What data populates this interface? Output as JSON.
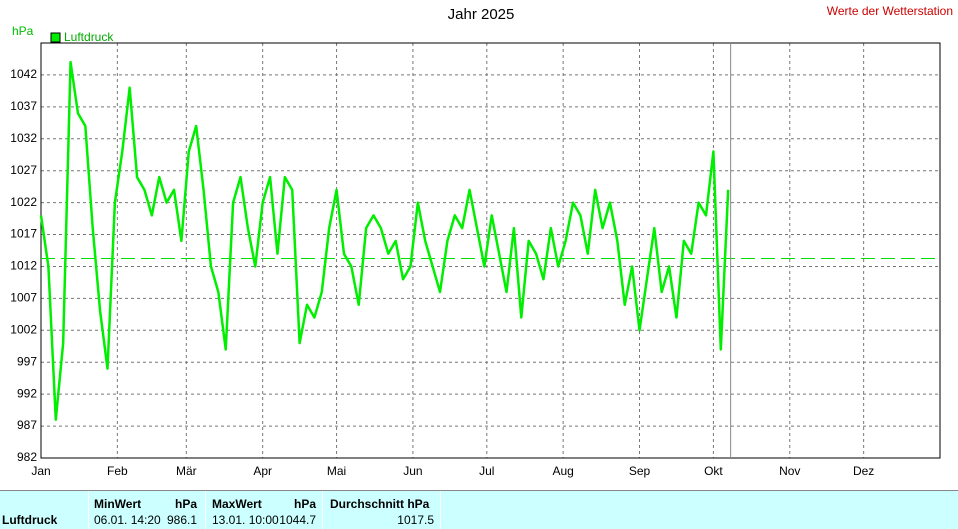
{
  "chart_data": {
    "type": "line",
    "title": "Jahr 2025",
    "note": "Werte der Wetterstation",
    "y_label": "hPa",
    "legend": "top-left",
    "grid": true,
    "xlim": [
      0,
      365
    ],
    "xticks": [
      {
        "value": 0,
        "label": "Jan"
      },
      {
        "value": 31,
        "label": "Feb"
      },
      {
        "value": 59,
        "label": "Mär"
      },
      {
        "value": 90,
        "label": "Apr"
      },
      {
        "value": 120,
        "label": "Mai"
      },
      {
        "value": 151,
        "label": "Jun"
      },
      {
        "value": 181,
        "label": "Jul"
      },
      {
        "value": 212,
        "label": "Aug"
      },
      {
        "value": 243,
        "label": "Sep"
      },
      {
        "value": 273,
        "label": "Okt"
      },
      {
        "value": 304,
        "label": "Nov"
      },
      {
        "value": 334,
        "label": "Dez"
      }
    ],
    "ylim": [
      982,
      1047
    ],
    "yticks": [
      982,
      987,
      992,
      997,
      1002,
      1007,
      1012,
      1017,
      1022,
      1027,
      1032,
      1037,
      1042
    ],
    "reference_line": 1013.25,
    "reference_color": "#00e000",
    "current_x": 280,
    "series": [
      {
        "name": "Luftdruck",
        "color": "#00ee00",
        "x": [
          0,
          3,
          6,
          9,
          12,
          15,
          18,
          21,
          24,
          27,
          30,
          33,
          36,
          39,
          42,
          45,
          48,
          51,
          54,
          57,
          60,
          63,
          66,
          69,
          72,
          75,
          78,
          81,
          84,
          87,
          90,
          93,
          96,
          99,
          102,
          105,
          108,
          111,
          114,
          117,
          120,
          123,
          126,
          129,
          132,
          135,
          138,
          141,
          144,
          147,
          150,
          153,
          156,
          159,
          162,
          165,
          168,
          171,
          174,
          177,
          180,
          183,
          186,
          189,
          192,
          195,
          198,
          201,
          204,
          207,
          210,
          213,
          216,
          219,
          222,
          225,
          228,
          231,
          234,
          237,
          240,
          243,
          246,
          249,
          252,
          255,
          258,
          261,
          264,
          267,
          270,
          273,
          276,
          279
        ],
        "values": [
          1020,
          1012,
          988,
          1000,
          1044,
          1036,
          1034,
          1018,
          1005,
          996,
          1022,
          1030,
          1040,
          1026,
          1024,
          1020,
          1026,
          1022,
          1024,
          1016,
          1030,
          1034,
          1024,
          1012,
          1008,
          999,
          1022,
          1026,
          1018,
          1012,
          1022,
          1026,
          1014,
          1026,
          1024,
          1000,
          1006,
          1004,
          1008,
          1018,
          1024,
          1014,
          1012,
          1006,
          1018,
          1020,
          1018,
          1014,
          1016,
          1010,
          1012,
          1022,
          1016,
          1012,
          1008,
          1016,
          1020,
          1018,
          1024,
          1018,
          1012,
          1020,
          1014,
          1008,
          1018,
          1004,
          1016,
          1014,
          1010,
          1018,
          1012,
          1016,
          1022,
          1020,
          1014,
          1024,
          1018,
          1022,
          1016,
          1006,
          1012,
          1002,
          1010,
          1018,
          1008,
          1012,
          1004,
          1016,
          1014,
          1022,
          1020,
          1030,
          999,
          1024
        ]
      }
    ]
  },
  "summary": {
    "row_label": "Luftdruck",
    "min_header": "MinWert",
    "min_unit": "hPa",
    "min_time": "06.01.  14:20",
    "min_value": "986.1",
    "max_header": "MaxWert",
    "max_unit": "hPa",
    "max_time": "13.01.  10:00",
    "max_value": "1044.7",
    "avg_header": "Durchschnitt  hPa",
    "avg_value": "1017.5"
  }
}
